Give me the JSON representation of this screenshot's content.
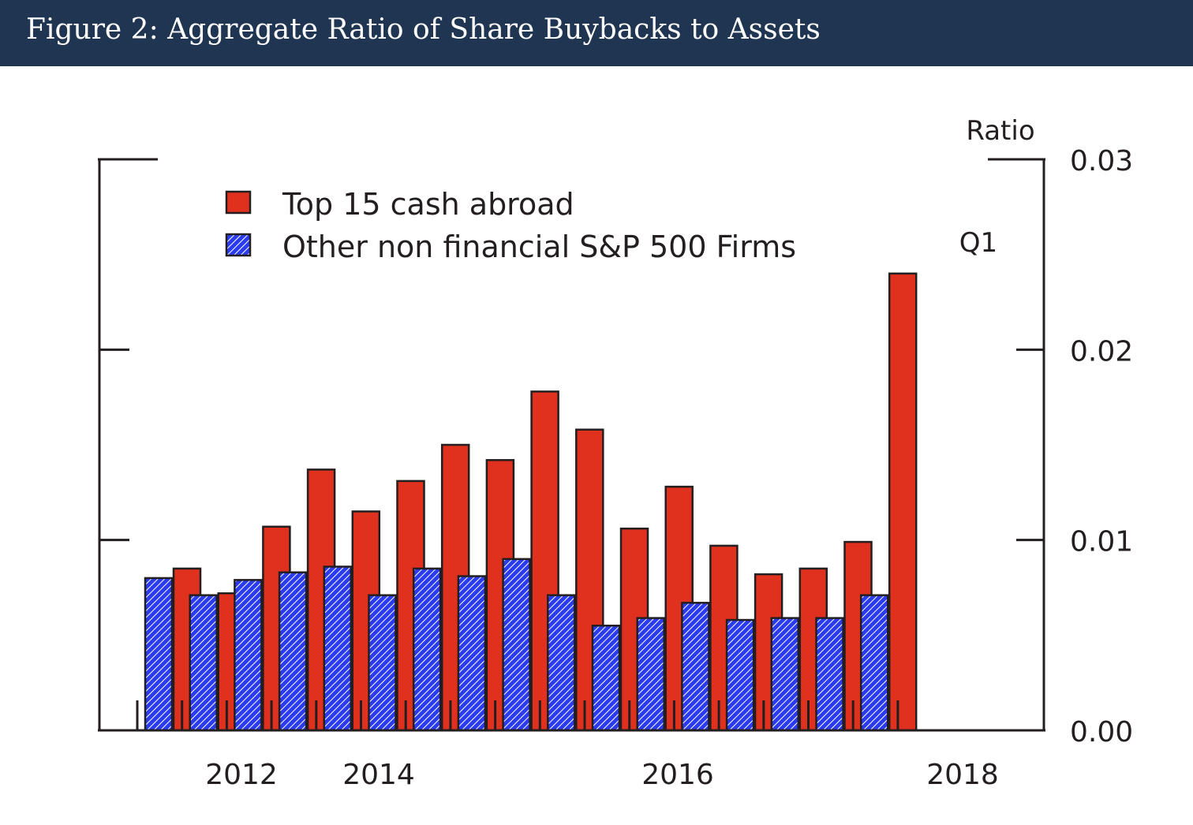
{
  "header": {
    "title": "Figure 2: Aggregate Ratio of Share Buybacks to Assets",
    "bg_color": "#1f3552"
  },
  "chart_data": {
    "type": "bar",
    "title": "",
    "ylabel": "Ratio",
    "ylim": [
      0,
      0.03
    ],
    "yticks": [
      "0.00",
      "0.01",
      "0.02",
      "0.03"
    ],
    "x_tick_labels": [
      "2012",
      "2014",
      "2016",
      "2018"
    ],
    "annotation": "Q1",
    "legend_position": "top-left",
    "grid": false,
    "series": [
      {
        "name": "Top 15 cash abroad",
        "color": "#e0301e",
        "values": [
          0.0085,
          0.0072,
          0.0107,
          0.0137,
          0.0115,
          0.0131,
          0.015,
          0.0142,
          0.0178,
          0.0158,
          0.0106,
          0.0128,
          0.0097,
          0.0082,
          0.0085,
          0.0099,
          0.024
        ]
      },
      {
        "name": "Other non financial S&P 500 Firms",
        "color": "#2b3bf0",
        "values": [
          0.008,
          0.0071,
          0.0079,
          0.0083,
          0.0086,
          0.0071,
          0.0085,
          0.0081,
          0.009,
          0.0071,
          0.0055,
          0.0059,
          0.0067,
          0.0058,
          0.0059,
          0.0059,
          0.0071
        ]
      }
    ]
  }
}
